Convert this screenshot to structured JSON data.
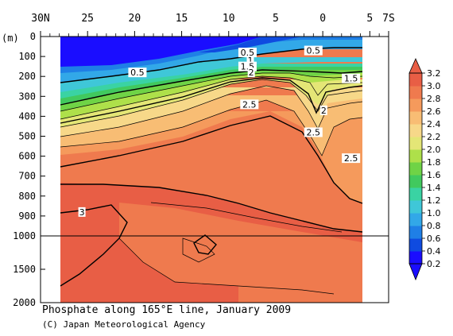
{
  "chart_data": {
    "type": "heatmap",
    "title": "Phosphate along 165°E line, January 2009",
    "credit": "(C) Japan Meteorological Agency",
    "x_axis": {
      "range": [
        30,
        -7
      ],
      "ticks": [
        "30N",
        "25",
        "20",
        "15",
        "10",
        "5",
        "0",
        "5",
        "7S"
      ],
      "tick_values": [
        30,
        25,
        20,
        15,
        10,
        5,
        0,
        -5,
        -7
      ]
    },
    "y_axis": {
      "unit": "(m)",
      "ticks": [
        "0",
        "100",
        "200",
        "300",
        "400",
        "500",
        "600",
        "700",
        "800",
        "900",
        "1000",
        "1500",
        "2000"
      ],
      "tick_values": [
        0,
        100,
        200,
        300,
        400,
        500,
        600,
        700,
        800,
        900,
        1000,
        1500,
        2000
      ],
      "scale_break": 1000
    },
    "data_extent": {
      "lat": [
        28,
        -4.5
      ],
      "depth": [
        0,
        2000
      ]
    },
    "colorbar": {
      "levels": [
        0.2,
        0.4,
        0.6,
        0.8,
        1.0,
        1.2,
        1.4,
        1.6,
        1.8,
        2.0,
        2.2,
        2.4,
        2.6,
        2.8,
        3.0,
        3.2
      ],
      "labels": [
        "3.2",
        "3.0",
        "2.8",
        "2.6",
        "2.4",
        "2.2",
        "2.0",
        "1.8",
        "1.6",
        "1.4",
        "1.2",
        "1.0",
        "0.8",
        "0.6",
        "0.4",
        "0.2"
      ],
      "colors": [
        "#1a0dff",
        "#0f4be0",
        "#1f7fe6",
        "#32a8e8",
        "#3fc7d8",
        "#3ad3a3",
        "#41c95e",
        "#6fd346",
        "#aee04a",
        "#e4e676",
        "#f7d889",
        "#f8bd74",
        "#f59a5c",
        "#ef7a4e",
        "#e85e45"
      ]
    },
    "contour_labels": [
      {
        "value": "0.5",
        "lat": 8.0,
        "depth": 80
      },
      {
        "value": "1",
        "lat": 7.7,
        "depth": 120
      },
      {
        "value": "1.5",
        "lat": 8.0,
        "depth": 150
      },
      {
        "value": "2",
        "lat": 7.6,
        "depth": 180
      },
      {
        "value": "0.5",
        "lat": 19.7,
        "depth": 180
      },
      {
        "value": "0.5",
        "lat": 1.0,
        "depth": 70
      },
      {
        "value": "1.5",
        "lat": -3.0,
        "depth": 210
      },
      {
        "value": "2.5",
        "lat": 7.8,
        "depth": 340
      },
      {
        "value": "2",
        "lat": -0.1,
        "depth": 370
      },
      {
        "value": "2.5",
        "lat": 1.0,
        "depth": 480
      },
      {
        "value": "2.5",
        "lat": -3.0,
        "depth": 610
      },
      {
        "value": "3",
        "lat": 25.6,
        "depth": 880
      }
    ]
  }
}
